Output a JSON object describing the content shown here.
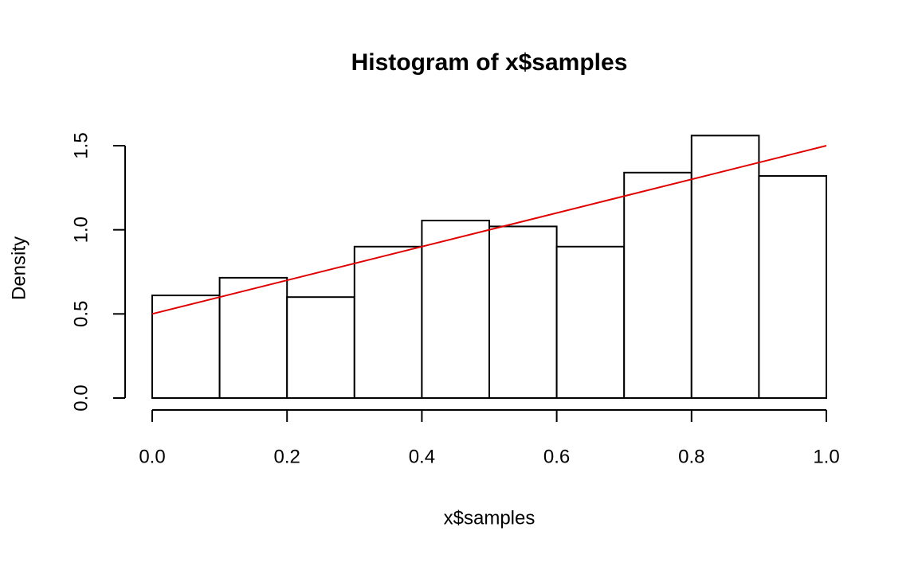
{
  "chart_data": {
    "type": "histogram",
    "title": "Histogram of x$samples",
    "x_label": "x$samples",
    "y_label": "Density",
    "bins": [
      0,
      0.1,
      0.2,
      0.3,
      0.4,
      0.5,
      0.6,
      0.7,
      0.8,
      0.9,
      1.0
    ],
    "values": [
      0.61,
      0.715,
      0.6,
      0.9,
      1.055,
      1.02,
      0.9,
      1.34,
      1.56,
      1.32
    ],
    "color": "#ffffff",
    "density_line": {
      "x": [
        0,
        1
      ],
      "values": [
        0.5,
        1.5
      ],
      "color": "#dd0000"
    },
    "xlim": [
      0,
      1
    ],
    "ylim": [
      0,
      1.5
    ],
    "xticks": [
      {
        "value": 0,
        "label": "0.0"
      },
      {
        "value": 0.2,
        "label": "0.2"
      },
      {
        "value": 0.4,
        "label": "0.4"
      },
      {
        "value": 0.6,
        "label": "0.6"
      },
      {
        "value": 0.8,
        "label": "0.8"
      },
      {
        "value": 1,
        "label": "1.0"
      }
    ],
    "yticks": [
      {
        "value": 0,
        "label": "0.0"
      },
      {
        "value": 0.5,
        "label": "0.5"
      },
      {
        "value": 1,
        "label": "1.0"
      },
      {
        "value": 1.5,
        "label": "1.5"
      }
    ],
    "grid": false
  }
}
